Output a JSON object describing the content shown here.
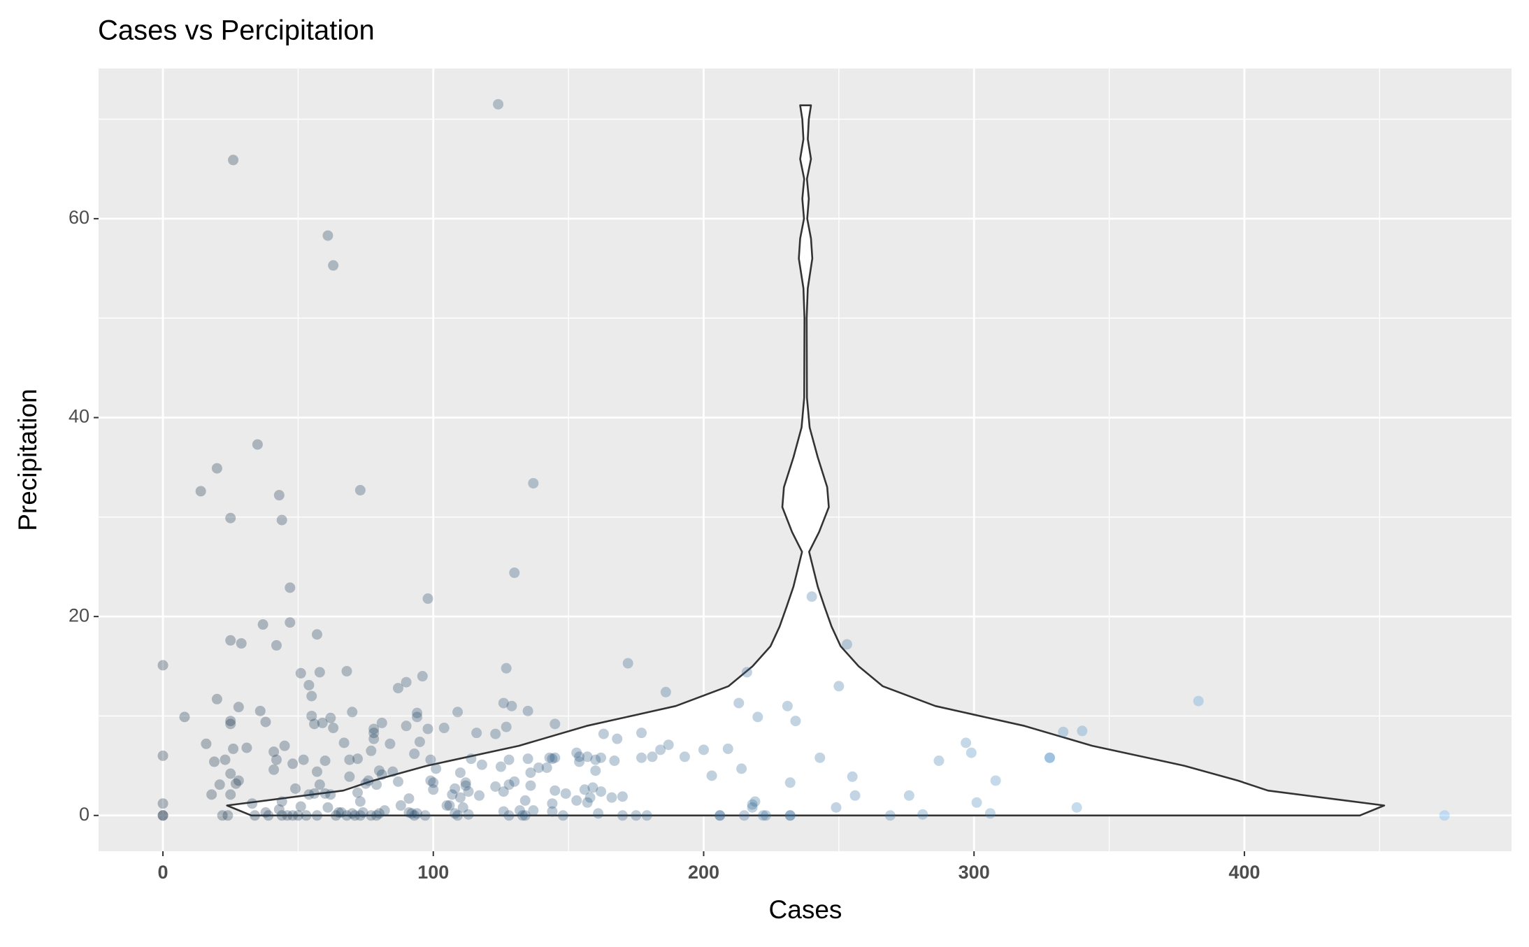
{
  "chart_data": {
    "type": "scatter",
    "title": "Cases vs Percipitation",
    "x_label": "Cases",
    "y_label": "Precipitation",
    "xlim": [
      -23.8,
      498.8
    ],
    "ylim": [
      -3.6,
      75.1
    ],
    "xticks": [
      0,
      100,
      200,
      300,
      400
    ],
    "yticks": [
      0,
      20,
      40,
      60
    ],
    "grid": true,
    "minor_grid": true,
    "color_gradient": [
      "#132B43",
      "#56B1F7"
    ],
    "alpha": 0.3,
    "x": [
      0,
      0,
      0,
      0,
      0,
      8,
      14,
      16,
      18,
      19,
      20,
      20,
      21,
      22,
      23,
      24,
      25,
      25,
      25,
      25,
      25,
      25,
      26,
      26,
      27,
      28,
      28,
      29,
      31,
      33,
      34,
      35,
      36,
      37,
      38,
      38,
      39,
      41,
      41,
      42,
      42,
      43,
      43,
      44,
      44,
      44,
      45,
      46,
      47,
      47,
      48,
      48,
      49,
      50,
      51,
      51,
      52,
      53,
      54,
      54,
      55,
      55,
      56,
      56,
      57,
      57,
      57,
      58,
      58,
      59,
      60,
      60,
      61,
      61,
      62,
      62,
      63,
      63,
      64,
      65,
      66,
      67,
      68,
      68,
      69,
      69,
      70,
      70,
      71,
      72,
      72,
      73,
      73,
      73,
      74,
      75,
      76,
      77,
      77,
      78,
      78,
      78,
      79,
      79,
      80,
      80,
      81,
      81,
      82,
      84,
      85,
      87,
      87,
      88,
      90,
      90,
      91,
      91,
      92,
      93,
      93,
      94,
      94,
      94,
      95,
      96,
      97,
      98,
      98,
      99,
      99,
      100,
      100,
      101,
      104,
      105,
      106,
      107,
      108,
      108,
      109,
      109,
      110,
      110,
      111,
      112,
      112,
      113,
      113,
      114,
      116,
      117,
      118,
      123,
      123,
      124,
      125,
      126,
      126,
      126,
      127,
      127,
      128,
      128,
      128,
      129,
      130,
      130,
      132,
      133,
      134,
      134,
      135,
      135,
      136,
      136,
      137,
      137,
      139,
      142,
      143,
      144,
      144,
      144,
      145,
      145,
      145,
      148,
      149,
      153,
      153,
      154,
      154,
      156,
      157,
      157,
      158,
      159,
      160,
      160,
      161,
      162,
      162,
      163,
      166,
      167,
      168,
      170,
      170,
      172,
      175,
      177,
      177,
      179,
      181,
      184,
      186,
      187,
      193,
      200,
      203,
      206,
      206,
      209,
      213,
      214,
      215,
      216,
      218,
      218,
      219,
      220,
      222,
      223,
      231,
      232,
      232,
      232,
      234,
      240,
      243,
      249,
      250,
      253,
      255,
      256,
      269,
      276,
      281,
      287,
      297,
      299,
      301,
      306,
      308,
      328,
      328,
      333,
      338,
      340,
      383,
      474
    ],
    "y": [
      15.1,
      6,
      1.2,
      0,
      0,
      9.9,
      32.6,
      7.2,
      2.1,
      5.4,
      11.7,
      34.9,
      3.1,
      0,
      5.6,
      0,
      9.5,
      9.2,
      17.6,
      29.9,
      4.2,
      2.1,
      65.9,
      6.7,
      3.2,
      3.5,
      10.9,
      17.3,
      6.8,
      1.2,
      0,
      37.3,
      10.5,
      19.2,
      9.4,
      0.3,
      0,
      6.4,
      4.6,
      5.6,
      17.1,
      32.2,
      0.6,
      29.7,
      1.4,
      0,
      7,
      0,
      22.9,
      19.4,
      5.2,
      0,
      2.7,
      0,
      14.3,
      0.9,
      5.6,
      0,
      13.1,
      2.1,
      10,
      12,
      9.2,
      2.2,
      18.2,
      4.4,
      0,
      14.4,
      3.1,
      9.3,
      5.5,
      2.2,
      0.8,
      58.3,
      9.8,
      2.1,
      8.8,
      55.3,
      0,
      0.3,
      0.3,
      7.3,
      0,
      14.5,
      5.6,
      3.9,
      10.4,
      0.2,
      0,
      5.7,
      2.3,
      32.7,
      1.4,
      0,
      0.3,
      3.2,
      3.5,
      6.5,
      0,
      7.7,
      8.3,
      8.7,
      3.1,
      0,
      0.2,
      4.5,
      4.1,
      9.3,
      0.5,
      7.2,
      4.4,
      3.4,
      12.8,
      1,
      13.4,
      9,
      0.3,
      1.7,
      0.2,
      0,
      6.2,
      10.3,
      9.9,
      0.2,
      7.4,
      14,
      0,
      8.7,
      21.8,
      5.6,
      3.5,
      2.6,
      3.3,
      4.7,
      8.8,
      1,
      1,
      2.1,
      2.7,
      0.2,
      10.4,
      0,
      4.3,
      1.8,
      0.8,
      3,
      3.3,
      2.4,
      0.1,
      5.7,
      8.3,
      2,
      5.1,
      8.2,
      2.9,
      71.5,
      4.9,
      11.3,
      0.4,
      2.4,
      14.8,
      8.9,
      3.1,
      0,
      5.6,
      11,
      3.4,
      24.4,
      0.5,
      0,
      0,
      1.5,
      10.5,
      5.7,
      4.3,
      3,
      0.5,
      33.4,
      4.8,
      4.8,
      5.8,
      1.2,
      5.7,
      0.4,
      9.2,
      2.5,
      5.8,
      0,
      2.2,
      6.3,
      1.5,
      5.4,
      5.9,
      2.6,
      1.3,
      5.9,
      1.8,
      2.8,
      4.5,
      5.6,
      0.2,
      2.4,
      5.8,
      8.2,
      1.8,
      5.5,
      7.7,
      0,
      1.9,
      15.3,
      0,
      5.8,
      8.3,
      0,
      5.9,
      6.6,
      12.4,
      7.1,
      5.9,
      6.6,
      4,
      0,
      0,
      6.7,
      11.3,
      4.7,
      0,
      14.4,
      0.8,
      1.1,
      1.4,
      9.9,
      0,
      0,
      11,
      3.3,
      0,
      0,
      9.5,
      22,
      5.8,
      0.8,
      13,
      17.2,
      3.9,
      2,
      0,
      2,
      0.1,
      5.5,
      7.3,
      6.3,
      1.3,
      0.2,
      3.5,
      5.8,
      5.8,
      8.4,
      0.8,
      8.5,
      11.5,
      0
    ],
    "violin": {
      "x": 237.7,
      "y": [
        0,
        1,
        2.5,
        3.5,
        5,
        7,
        9,
        11,
        13,
        15,
        17,
        19,
        21,
        23,
        26.5,
        28.5,
        31,
        33,
        36,
        39,
        42,
        50,
        53,
        56,
        58,
        60,
        62,
        64,
        66,
        68,
        70,
        71.4
      ],
      "half_width": [
        205,
        214,
        171,
        160,
        140,
        106,
        81,
        48,
        28.5,
        19.6,
        13,
        9.6,
        7,
        4.5,
        1.3,
        5,
        8.6,
        8,
        4.5,
        1.5,
        0.5,
        0.4,
        0.8,
        2.5,
        2,
        0.6,
        1.2,
        0.5,
        2,
        0.8,
        1.2,
        2
      ]
    }
  }
}
